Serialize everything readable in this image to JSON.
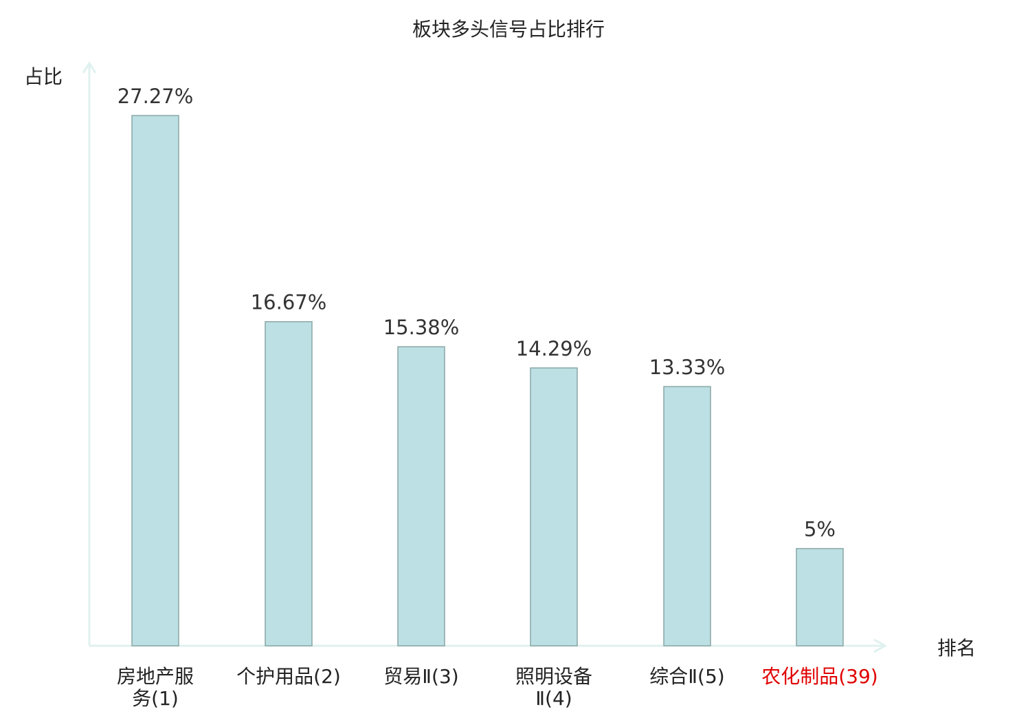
{
  "chart_data": {
    "type": "bar",
    "title": "板块多头信号占比排行",
    "xlabel": "排名",
    "ylabel": "占比",
    "ylim": [
      0,
      27.27
    ],
    "categories": [
      [
        "房地产服",
        "务(1)"
      ],
      [
        "个护用品(2)"
      ],
      [
        "贸易Ⅱ(3)"
      ],
      [
        "照明设备",
        "Ⅱ(4)"
      ],
      [
        "综合Ⅱ(5)"
      ],
      [
        "农化制品(39)"
      ]
    ],
    "values": [
      27.27,
      16.67,
      15.38,
      14.29,
      13.33,
      5
    ],
    "value_labels": [
      "27.27%",
      "16.67%",
      "15.38%",
      "14.29%",
      "13.33%",
      "5%"
    ],
    "highlight_index": 5,
    "colors": {
      "bar_fill": "#bce0e3",
      "bar_stroke": "#8aa6a6",
      "axis": "#dff1ef",
      "text": "#222222",
      "value_text": "#333333",
      "highlight": "#e00000"
    },
    "grid": false,
    "legend": "none"
  }
}
